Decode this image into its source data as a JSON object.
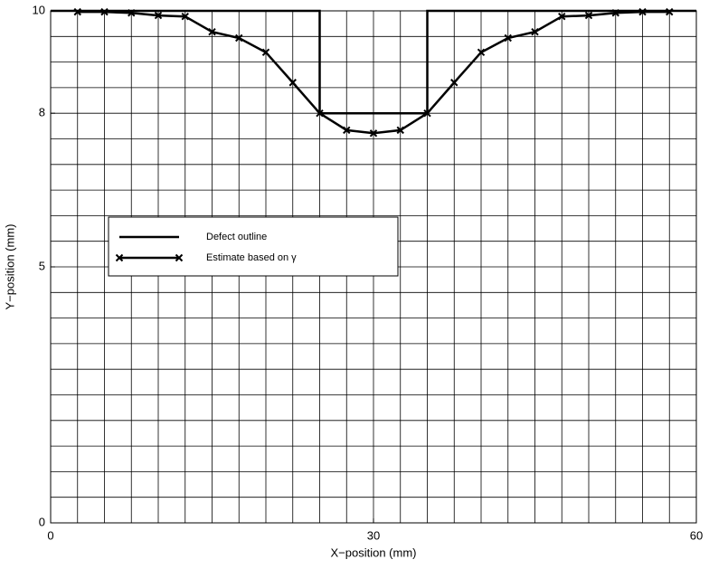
{
  "chart_data": {
    "type": "line",
    "xlabel": "X−position (mm)",
    "ylabel": "Y−position (mm)",
    "xlim": [
      0,
      60
    ],
    "ylim": [
      0,
      10
    ],
    "xticks": [
      0,
      30,
      60
    ],
    "yticks": [
      0,
      5,
      8,
      10
    ],
    "grid": {
      "x_step": 2.5,
      "y_step": 0.5
    },
    "legend": "upper left",
    "series": [
      {
        "name": "Defect outline",
        "color": "#000000",
        "marker": "none",
        "x": [
          0,
          25,
          25,
          35,
          35,
          60
        ],
        "values": [
          10,
          10,
          8,
          8,
          10,
          10
        ]
      },
      {
        "name": "Estimate based on γ",
        "color": "#000000",
        "marker": "x",
        "x": [
          2.5,
          5,
          7.5,
          10,
          12.5,
          15,
          17.5,
          20,
          22.5,
          25,
          27.5,
          30,
          32.5,
          35,
          37.5,
          40,
          42.5,
          45,
          47.5,
          50,
          52.5,
          55,
          57.5
        ],
        "values": [
          9.98,
          9.98,
          9.96,
          9.91,
          9.89,
          9.59,
          9.47,
          9.19,
          8.6,
          8.0,
          7.67,
          7.61,
          7.67,
          8.0,
          8.6,
          9.19,
          9.47,
          9.59,
          9.89,
          9.91,
          9.96,
          9.98,
          9.98
        ]
      }
    ]
  }
}
